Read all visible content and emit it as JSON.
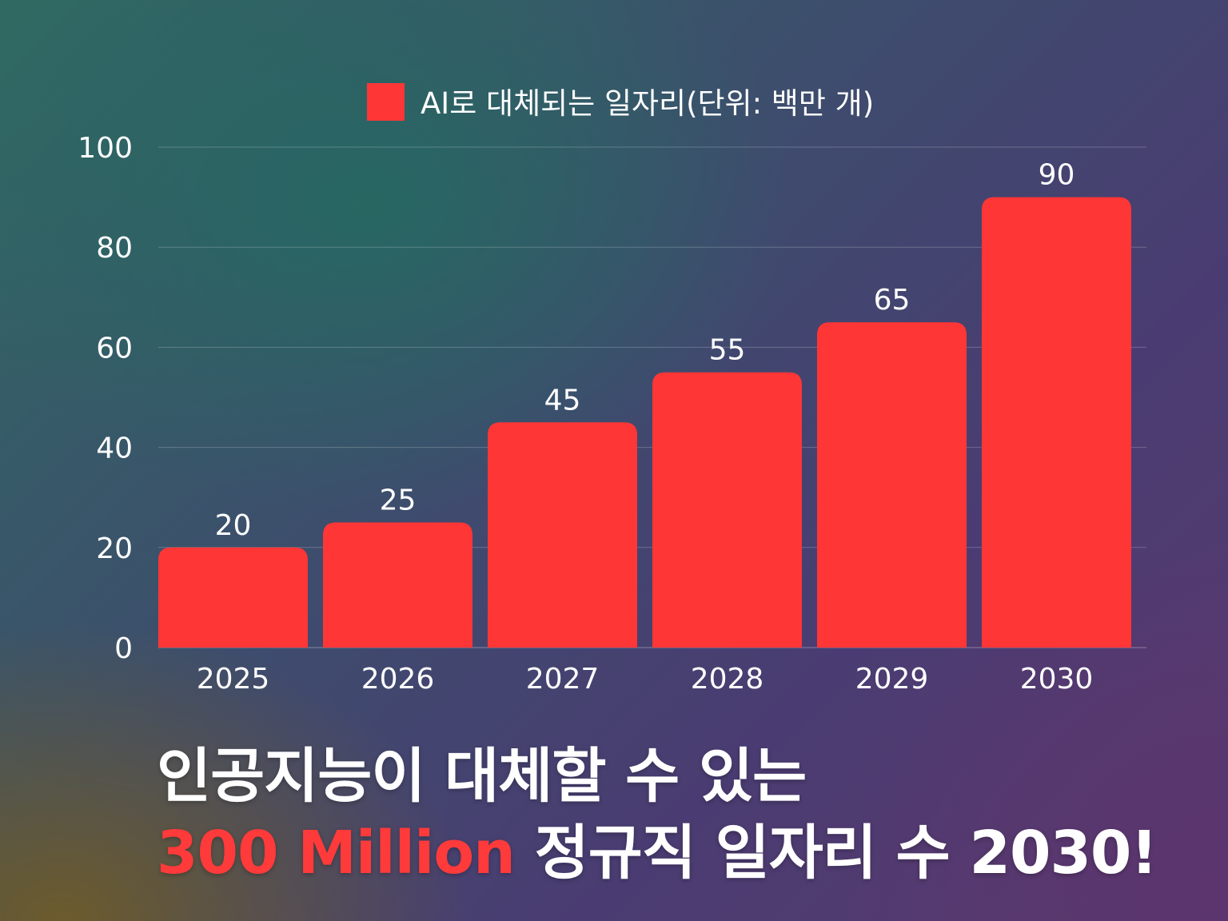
{
  "chart_data": {
    "type": "bar",
    "categories": [
      "2025",
      "2026",
      "2027",
      "2028",
      "2029",
      "2030"
    ],
    "series": [
      {
        "name": "AI로 대체되는 일자리(단위: 백만 개)",
        "values": [
          20,
          25,
          45,
          55,
          65,
          90
        ]
      }
    ],
    "ylim": [
      0,
      100
    ],
    "yticks": [
      0,
      20,
      40,
      60,
      80,
      100
    ],
    "grid": true,
    "legend_position": "top-center",
    "data_labels": true
  },
  "colors": {
    "bar": "#ff3636",
    "text": "#ffffff",
    "gridline": "#ffffff",
    "accent": "#ff3a3a"
  },
  "headline": {
    "line1": "인공지능이 대체할 수 있는",
    "line2_accent": "300 Million",
    "line2_rest": " 정규직 일자리 수 2030!"
  }
}
